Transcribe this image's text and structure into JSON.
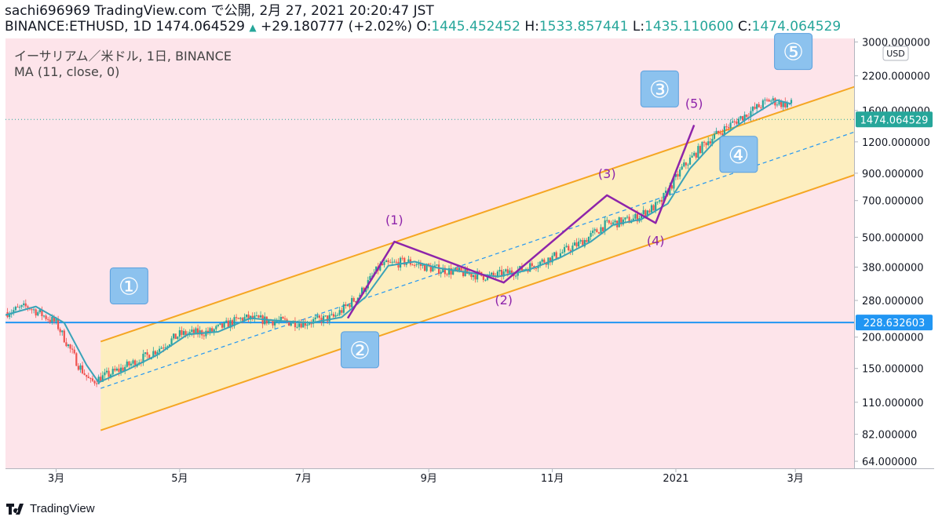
{
  "header": {
    "line1": "sachi696969 TradingView.com で公開, 2月 27, 2021 20:20:47 JST",
    "symbol": "BINANCE:ETHUSD, 1D 1474.064529",
    "change": "+29.180777 (+2.02%)",
    "o_label": "O:",
    "o_value": "1445.452452",
    "h_label": "H:",
    "h_value": "1533.857441",
    "l_label": "L:",
    "l_value": "1435.110600",
    "c_label": "C:",
    "c_value": "1474.064529"
  },
  "legend": {
    "title": "イーサリアム／米ドル, 1日, BINANCE",
    "indicator": "MA (11, close, 0)"
  },
  "price_axis": {
    "currency": "USD",
    "ticks": [
      "3000.000000",
      "2200.000000",
      "1600.000000",
      "1200.000000",
      "900.000000",
      "700.000000",
      "500.000000",
      "380.000000",
      "280.000000",
      "200.000000",
      "150.000000",
      "110.000000",
      "82.000000",
      "64.000000"
    ],
    "last_price_label": "1474.064529",
    "hline_label": "228.632603"
  },
  "time_axis": {
    "ticks": [
      "3月",
      "5月",
      "7月",
      "9月",
      "11月",
      "2021",
      "3月"
    ]
  },
  "annotations": {
    "circled": [
      "①",
      "②",
      "③",
      "④",
      "⑤"
    ],
    "wave": [
      "(1)",
      "(2)",
      "(3)",
      "(4)",
      "(5)"
    ]
  },
  "branding": {
    "name": "TradingView"
  },
  "colors": {
    "background": "#fde4ea",
    "channel_fill": "#fdeebf",
    "channel_line": "#f5a623",
    "midline": "#2196f3",
    "ma": "#3aa3b8",
    "wave_line": "#8e24aa",
    "hline": "#2196f3",
    "up_candle": "#26a69a",
    "down_candle": "#ef5350",
    "label_box": "#8cc2ee"
  },
  "chart_data": {
    "type": "candlestick",
    "symbol": "BINANCE:ETHUSD",
    "interval": "1D",
    "scale": "log",
    "y_range": [
      60,
      3100
    ],
    "x_range": [
      "2020-02-05",
      "2021-03-30"
    ],
    "last_price": 1474.064529,
    "ohlc_last": {
      "open": 1445.452452,
      "high": 1533.857441,
      "low": 1435.1106,
      "close": 1474.064529,
      "change": 29.180777,
      "change_pct": 2.02
    },
    "horizontal_line": 228.632603,
    "series": [
      {
        "name": "MA (11, close, 0)",
        "points": [
          [
            "2020-02-05",
            245
          ],
          [
            "2020-02-20",
            265
          ],
          [
            "2020-03-05",
            228
          ],
          [
            "2020-03-16",
            155
          ],
          [
            "2020-03-22",
            132
          ],
          [
            "2020-04-05",
            148
          ],
          [
            "2020-04-20",
            170
          ],
          [
            "2020-05-05",
            205
          ],
          [
            "2020-05-20",
            210
          ],
          [
            "2020-06-05",
            238
          ],
          [
            "2020-06-20",
            232
          ],
          [
            "2020-07-05",
            228
          ],
          [
            "2020-07-20",
            240
          ],
          [
            "2020-08-01",
            290
          ],
          [
            "2020-08-12",
            385
          ],
          [
            "2020-08-25",
            400
          ],
          [
            "2020-09-05",
            378
          ],
          [
            "2020-09-20",
            362
          ],
          [
            "2020-10-05",
            348
          ],
          [
            "2020-10-20",
            370
          ],
          [
            "2020-11-05",
            415
          ],
          [
            "2020-11-20",
            480
          ],
          [
            "2020-12-01",
            560
          ],
          [
            "2020-12-15",
            590
          ],
          [
            "2020-12-28",
            680
          ],
          [
            "2021-01-08",
            940
          ],
          [
            "2021-01-20",
            1200
          ],
          [
            "2021-02-05",
            1480
          ],
          [
            "2021-02-20",
            1760
          ],
          [
            "2021-02-27",
            1700
          ]
        ]
      }
    ],
    "channel": {
      "upper": [
        [
          "2020-03-23",
          192
        ],
        [
          "2021-03-31",
          2000
        ]
      ],
      "middle": [
        [
          "2020-03-23",
          125
        ],
        [
          "2021-03-31",
          1320
        ]
      ],
      "lower": [
        [
          "2020-03-23",
          85
        ],
        [
          "2021-03-31",
          890
        ]
      ]
    },
    "wave_path": [
      {
        "label": "",
        "date": "2020-07-23",
        "price": 238
      },
      {
        "label": "(1)",
        "date": "2020-08-15",
        "price": 480
      },
      {
        "label": "(2)",
        "date": "2020-10-08",
        "price": 330
      },
      {
        "label": "(3)",
        "date": "2020-11-28",
        "price": 735
      },
      {
        "label": "(4)",
        "date": "2020-12-22",
        "price": 570
      },
      {
        "label": "(5)",
        "date": "2021-01-10",
        "price": 1400
      }
    ],
    "circled_labels": [
      {
        "label": "①",
        "date": "2020-04-06",
        "price": 320
      },
      {
        "label": "②",
        "date": "2020-07-29",
        "price": 178
      },
      {
        "label": "③",
        "date": "2020-12-24",
        "price": 1950
      },
      {
        "label": "④",
        "date": "2021-02-01",
        "price": 1070
      },
      {
        "label": "⑤",
        "date": "2021-02-28",
        "price": 2750
      }
    ]
  }
}
